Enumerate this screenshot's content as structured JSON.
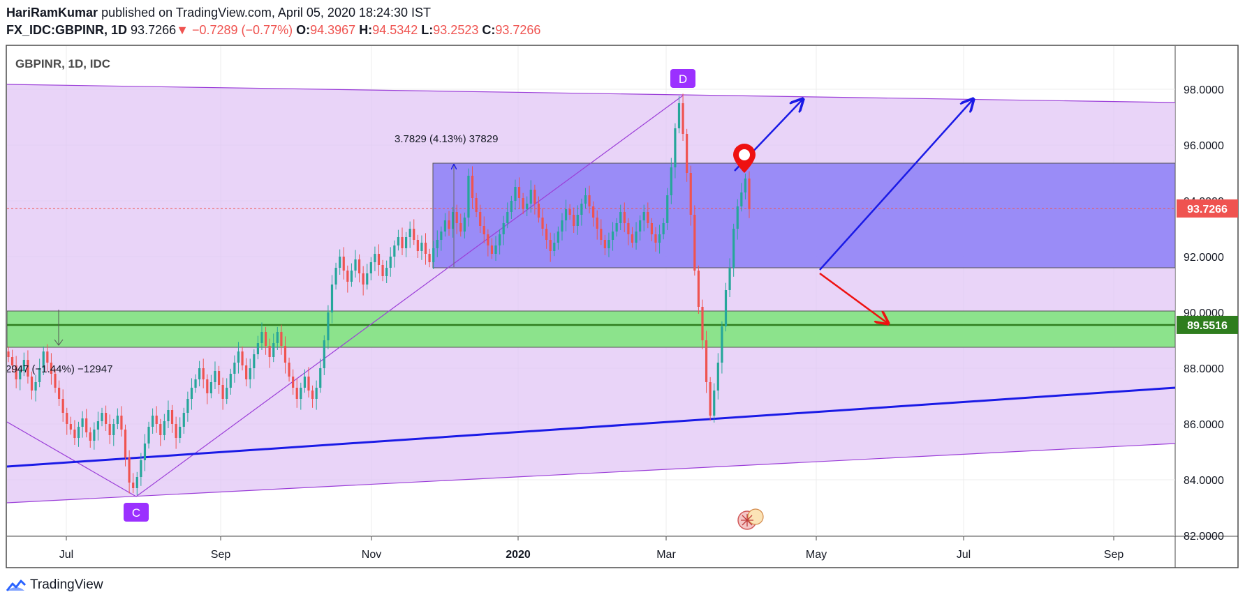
{
  "header": {
    "author": "HariRamKumar",
    "published_text": "published on TradingView.com, April 05, 2020 18:24:30 IST",
    "symbol": "FX_IDC:GBPINR, 1D",
    "last": "93.7266",
    "change_arrow": "▼",
    "change": "−0.7289 (−0.77%)",
    "o_label": "O:",
    "o": "94.3967",
    "h_label": "H:",
    "h": "94.5342",
    "l_label": "L:",
    "l": "93.2523",
    "c_label": "C:",
    "c": "93.7266"
  },
  "chart_title": "GBPINR, 1D, IDC",
  "footer": {
    "brand": "TradingView"
  },
  "colors": {
    "up": "#26a69a",
    "down": "#ef5350",
    "channel": "#e1c6f5",
    "box": "#8c7ff7",
    "zone": "#8ce38c",
    "price_tag": "#ef5350",
    "level_tag": "#2e7d1e",
    "arrow_up": "#1a1ae6",
    "arrow_down": "#ee1111"
  },
  "chart_data": {
    "type": "candlestick",
    "y_axis": {
      "ticks": [
        "98.0000",
        "96.0000",
        "94.0000",
        "92.0000",
        "90.0000",
        "88.0000",
        "86.0000",
        "84.0000",
        "82.0000"
      ],
      "range": [
        82,
        99.6
      ]
    },
    "x_axis": {
      "labels": [
        "Jul",
        "Sep",
        "Nov",
        "2020",
        "Mar",
        "May",
        "Jul",
        "Sep"
      ]
    },
    "current_price": "93.7266",
    "level_price": "89.5516",
    "measure_top": "3.7829 (4.13%) 37829",
    "measure_left": "2947 (−1.44%) −12947",
    "pattern_points": [
      "C",
      "D"
    ],
    "rectangle": {
      "top": 95.35,
      "bottom": 91.6
    },
    "support_zone": {
      "top": 90.05,
      "bottom": 88.75,
      "line": 89.55
    },
    "closes": [
      88.4,
      88.1,
      87.6,
      87.9,
      88.3,
      87.7,
      87.2,
      87.5,
      88.0,
      88.6,
      88.2,
      87.8,
      87.3,
      86.9,
      86.4,
      86.0,
      85.8,
      85.5,
      85.9,
      86.2,
      85.7,
      85.4,
      85.8,
      86.1,
      86.4,
      86.0,
      85.6,
      86.0,
      86.3,
      85.8,
      84.8,
      83.9,
      83.7,
      84.1,
      84.7,
      85.3,
      85.9,
      86.3,
      86.0,
      85.6,
      86.1,
      86.5,
      86.0,
      85.5,
      85.9,
      86.4,
      86.9,
      87.3,
      87.6,
      88.0,
      87.6,
      87.1,
      87.5,
      87.9,
      87.4,
      86.9,
      87.3,
      87.8,
      88.2,
      88.6,
      88.1,
      87.6,
      88.0,
      88.5,
      88.9,
      89.3,
      88.8,
      88.4,
      88.9,
      89.3,
      88.8,
      88.2,
      87.7,
      87.3,
      86.9,
      87.3,
      87.7,
      87.2,
      86.9,
      87.3,
      88.0,
      89.0,
      90.0,
      91.0,
      91.6,
      92.0,
      91.5,
      91.1,
      91.5,
      91.9,
      91.4,
      91.0,
      91.4,
      91.8,
      92.1,
      91.7,
      91.3,
      91.6,
      92.0,
      92.4,
      92.7,
      92.3,
      92.7,
      93.0,
      92.6,
      92.2,
      92.5,
      92.1,
      91.8,
      92.3,
      92.6,
      92.9,
      93.3,
      93.0,
      93.6,
      93.2,
      92.9,
      93.4,
      94.9,
      94.1,
      93.6,
      93.1,
      92.8,
      92.4,
      92.1,
      92.4,
      92.8,
      93.2,
      93.6,
      94.0,
      94.5,
      94.1,
      93.7,
      93.9,
      94.4,
      93.9,
      93.4,
      93.0,
      92.6,
      92.2,
      92.5,
      92.9,
      93.3,
      93.7,
      93.5,
      93.1,
      93.5,
      93.9,
      94.2,
      93.8,
      93.4,
      93.0,
      92.6,
      92.3,
      92.6,
      92.9,
      93.2,
      93.6,
      93.2,
      92.8,
      92.5,
      92.9,
      93.3,
      93.6,
      93.2,
      92.8,
      92.5,
      92.8,
      93.2,
      94.2,
      95.2,
      96.6,
      97.5,
      96.4,
      95.0,
      93.5,
      91.5,
      90.2,
      89.0,
      87.5,
      86.3,
      87.2,
      88.2,
      89.5,
      90.8,
      91.6,
      93.0,
      93.8,
      94.3,
      94.8,
      93.7
    ]
  }
}
